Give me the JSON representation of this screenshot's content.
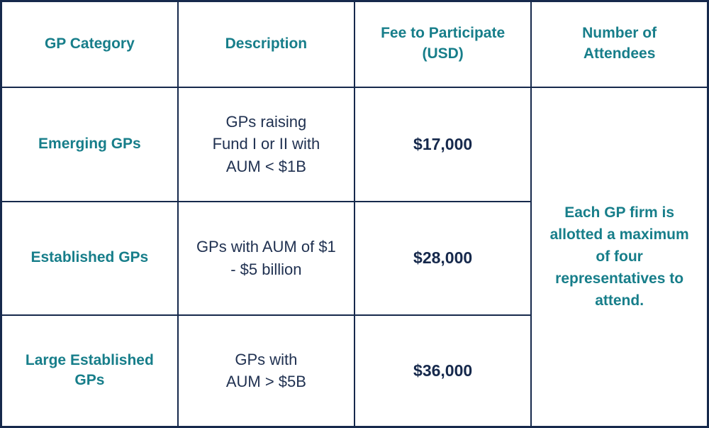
{
  "colors": {
    "teal": "#177E8A",
    "navy": "#16294C",
    "border": "#16294C",
    "background": "#FFFFFF"
  },
  "table": {
    "headers": [
      "GP Category",
      "Description",
      "Fee to Participate\n(USD)",
      "Number of\nAttendees"
    ],
    "rows": [
      {
        "category": "Emerging GPs",
        "description": "GPs raising\nFund I or II with\nAUM < $1B",
        "fee": "$17,000"
      },
      {
        "category": "Established GPs",
        "description": "GPs with AUM of $1\n- $5 billion",
        "fee": "$28,000"
      },
      {
        "category": "Large Established\nGPs",
        "description": "GPs with\nAUM > $5B",
        "fee": "$36,000"
      }
    ],
    "attendees_note": "Each GP firm is\nallotted a maximum\nof four\nrepresentatives to\nattend."
  }
}
